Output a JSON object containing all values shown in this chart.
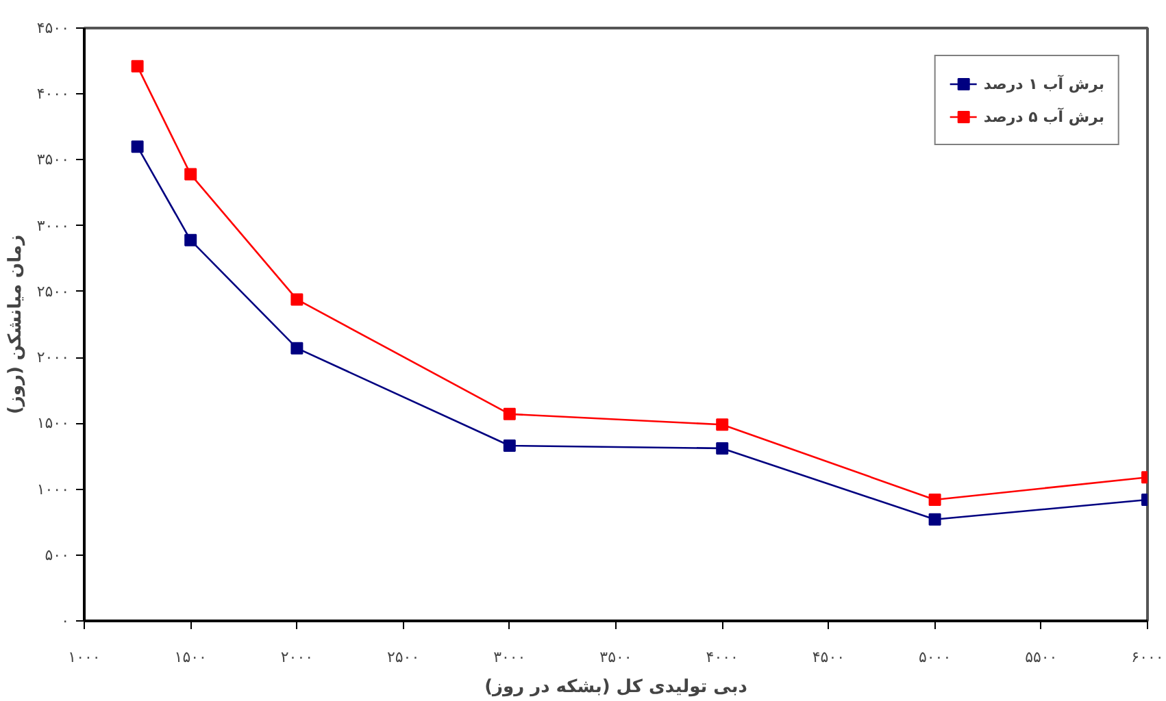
{
  "chart_data": {
    "type": "line",
    "xlabel": "دبی تولیدی کل (بشکه در روز)",
    "ylabel": "زمان میانشکن (روز)",
    "x": [
      1250,
      1500,
      2000,
      3000,
      4000,
      5000,
      6000
    ],
    "series": [
      {
        "name": "برش آب ۱ درصد",
        "color": "#000080",
        "values": [
          3600,
          2890,
          2070,
          1330,
          1310,
          770,
          920
        ]
      },
      {
        "name": "برش آب ۵ درصد",
        "color": "#ff0000",
        "values": [
          4210,
          3390,
          2440,
          1570,
          1490,
          920,
          1090
        ]
      }
    ],
    "xlim": [
      1000,
      6000
    ],
    "xticks": [
      {
        "value": 1000,
        "label": "۱۰۰۰"
      },
      {
        "value": 1500,
        "label": "۱۵۰۰"
      },
      {
        "value": 2000,
        "label": "۲۰۰۰"
      },
      {
        "value": 2500,
        "label": "۲۵۰۰"
      },
      {
        "value": 3000,
        "label": "۳۰۰۰"
      },
      {
        "value": 3500,
        "label": "۳۵۰۰"
      },
      {
        "value": 4000,
        "label": "۴۰۰۰"
      },
      {
        "value": 4500,
        "label": "۴۵۰۰"
      },
      {
        "value": 5000,
        "label": "۵۰۰۰"
      },
      {
        "value": 5500,
        "label": "۵۵۰۰"
      },
      {
        "value": 6000,
        "label": "۶۰۰۰"
      }
    ],
    "ylim": [
      0,
      4500
    ],
    "yticks": [
      {
        "value": 0,
        "label": "۰"
      },
      {
        "value": 500,
        "label": "۵۰۰"
      },
      {
        "value": 1000,
        "label": "۱۰۰۰"
      },
      {
        "value": 1500,
        "label": "۱۵۰۰"
      },
      {
        "value": 2000,
        "label": "۲۰۰۰"
      },
      {
        "value": 2500,
        "label": "۲۵۰۰"
      },
      {
        "value": 3000,
        "label": "۳۰۰۰"
      },
      {
        "value": 3500,
        "label": "۳۵۰۰"
      },
      {
        "value": 4000,
        "label": "۴۰۰۰"
      },
      {
        "value": 4500,
        "label": "۴۵۰۰"
      }
    ],
    "grid": false,
    "legend": "top right",
    "marker": "square",
    "line_style": "solid"
  }
}
